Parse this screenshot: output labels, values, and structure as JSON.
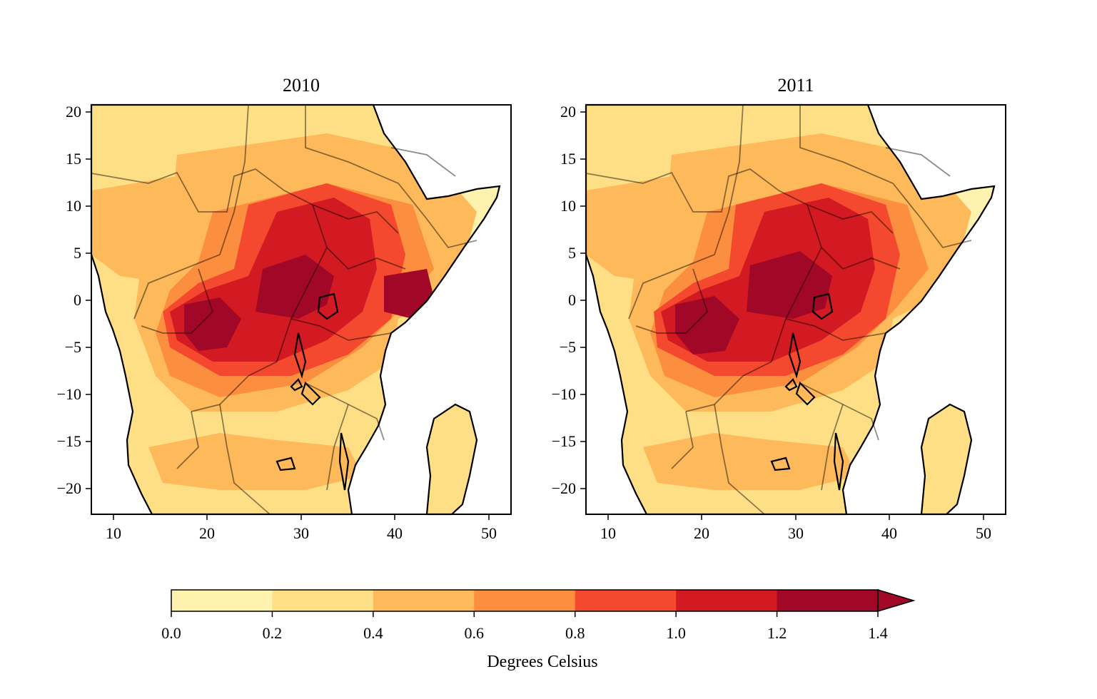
{
  "panels": [
    {
      "title": "2010",
      "id": "panel-2010"
    },
    {
      "title": "2011",
      "id": "panel-2011"
    }
  ],
  "x_ticks": [
    "10",
    "20",
    "30",
    "40",
    "50"
  ],
  "y_ticks": [
    "20",
    "15",
    "10",
    "5",
    "0",
    "−5",
    "−10",
    "−15",
    "−20"
  ],
  "colorbar": {
    "label": "Degrees Celsius",
    "ticks": [
      "0.0",
      "0.2",
      "0.4",
      "0.6",
      "0.8",
      "1.0",
      "1.2",
      "1.4"
    ],
    "colors": [
      "#fff2ae",
      "#fedf86",
      "#fdb95a",
      "#fc8e3f",
      "#f4492e",
      "#d31a23",
      "#a10827"
    ]
  }
}
